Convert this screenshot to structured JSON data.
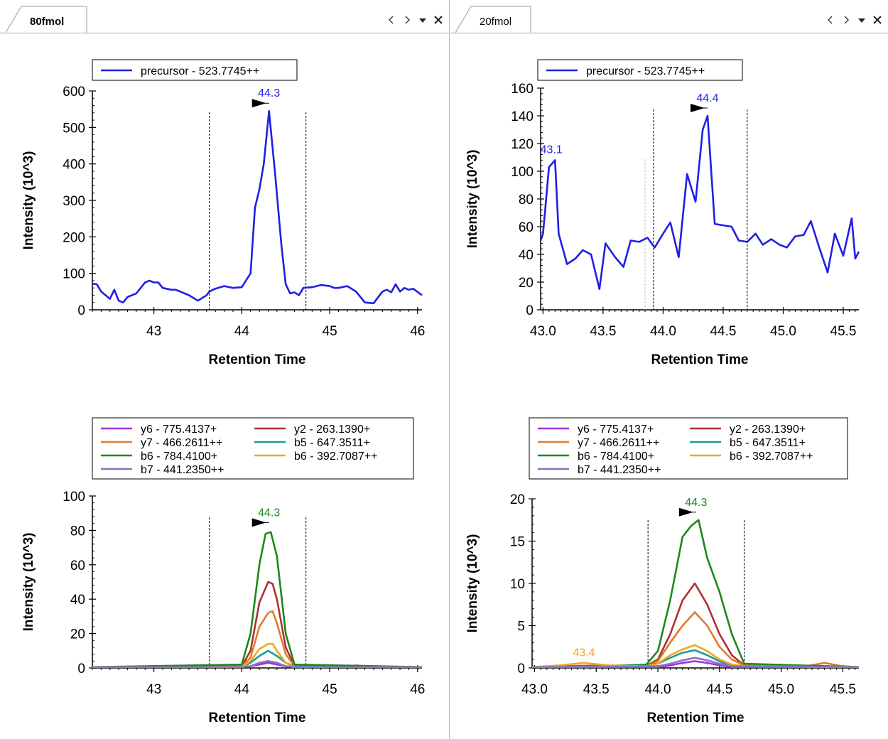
{
  "panes": [
    {
      "tab_label": "80fmol",
      "tab_active": true,
      "charts": [
        {
          "type": "line",
          "ylabel": "Intensity (10^3)",
          "xlabel": "Retention Time",
          "xlim": [
            42.3,
            46.05
          ],
          "ylim": [
            0,
            600
          ],
          "xticks": [
            43,
            44,
            45,
            46
          ],
          "xtick_labels": [
            "43",
            "44",
            "45",
            "46"
          ],
          "yticks": [
            0,
            100,
            200,
            300,
            400,
            500,
            600
          ],
          "ytick_labels": [
            "0",
            "100",
            "200",
            "300",
            "400",
            "500",
            "600"
          ],
          "boundaries": [
            43.63,
            44.73
          ],
          "peak_marker": {
            "x": 44.31,
            "y": 545,
            "label": "44.3",
            "color": "#2222ee"
          },
          "legend_columns": 1,
          "series": [
            {
              "name": "precursor - 523.7745++",
              "color": "#1f1fe5",
              "x": [
                42.3,
                42.35,
                42.4,
                42.5,
                42.55,
                42.6,
                42.65,
                42.7,
                42.8,
                42.9,
                42.95,
                43.0,
                43.05,
                43.1,
                43.2,
                43.25,
                43.3,
                43.4,
                43.5,
                43.6,
                43.63,
                43.7,
                43.8,
                43.9,
                44.0,
                44.1,
                44.15,
                44.2,
                44.25,
                44.31,
                44.38,
                44.45,
                44.5,
                44.55,
                44.6,
                44.65,
                44.7,
                44.8,
                44.9,
                45.0,
                45.05,
                45.1,
                45.2,
                45.3,
                45.4,
                45.5,
                45.6,
                45.65,
                45.7,
                45.75,
                45.8,
                45.85,
                45.9,
                45.95,
                46.05
              ],
              "y": [
                72,
                70,
                50,
                30,
                55,
                25,
                20,
                35,
                45,
                75,
                80,
                75,
                75,
                60,
                55,
                55,
                50,
                40,
                25,
                40,
                50,
                58,
                65,
                60,
                62,
                100,
                280,
                330,
                400,
                545,
                370,
                180,
                70,
                45,
                48,
                40,
                60,
                62,
                68,
                65,
                60,
                60,
                65,
                50,
                20,
                18,
                50,
                55,
                48,
                70,
                50,
                60,
                55,
                58,
                40
              ]
            }
          ]
        },
        {
          "type": "line",
          "ylabel": "Intensity (10^3)",
          "xlabel": "Retention Time",
          "xlim": [
            42.3,
            46.05
          ],
          "ylim": [
            0,
            100
          ],
          "xticks": [
            43,
            44,
            45,
            46
          ],
          "xtick_labels": [
            "43",
            "44",
            "45",
            "46"
          ],
          "yticks": [
            0,
            20,
            40,
            60,
            80,
            100
          ],
          "ytick_labels": [
            "0",
            "20",
            "40",
            "60",
            "80",
            "100"
          ],
          "boundaries": [
            43.63,
            44.73
          ],
          "peak_marker": {
            "x": 44.31,
            "y": 80,
            "label": "44.3",
            "color": "#1a8a1a"
          },
          "legend_columns": 2,
          "series": [
            {
              "name": "y6 - 775.4137+",
              "color": "#a030e0",
              "x": [
                42.3,
                44.0,
                44.1,
                44.2,
                44.3,
                44.4,
                44.5,
                44.6,
                46.05
              ],
              "y": [
                0.5,
                0.5,
                1,
                2,
                3,
                2,
                1,
                0.5,
                0.5
              ]
            },
            {
              "name": "y2 - 263.1390+",
              "color": "#b03030",
              "x": [
                42.3,
                44.0,
                44.1,
                44.2,
                44.3,
                44.35,
                44.4,
                44.5,
                44.6,
                46.05
              ],
              "y": [
                0.5,
                1,
                10,
                38,
                50,
                49,
                40,
                12,
                1,
                0.5
              ]
            },
            {
              "name": "y7 - 466.2611++",
              "color": "#e07a2e",
              "x": [
                42.3,
                44.0,
                44.1,
                44.2,
                44.3,
                44.35,
                44.4,
                44.5,
                44.6,
                45.2,
                45.3,
                45.4,
                46.05
              ],
              "y": [
                0.5,
                1,
                6,
                24,
                32,
                33,
                26,
                8,
                1,
                1,
                1.5,
                1,
                0.5
              ]
            },
            {
              "name": "b5 - 647.3511+",
              "color": "#1a9a9a",
              "x": [
                42.3,
                44.0,
                44.1,
                44.2,
                44.3,
                44.4,
                44.5,
                44.6,
                46.05
              ],
              "y": [
                0.5,
                0.5,
                3,
                7,
                10,
                7,
                3,
                1,
                0.5
              ]
            },
            {
              "name": "b6 - 784.4100+",
              "color": "#1a8a1a",
              "x": [
                42.3,
                44.0,
                44.1,
                44.2,
                44.27,
                44.33,
                44.4,
                44.5,
                44.6,
                46.05
              ],
              "y": [
                0.5,
                2,
                20,
                60,
                78,
                79,
                65,
                20,
                2,
                0.5
              ]
            },
            {
              "name": "b6 - 392.7087++",
              "color": "#f2a71b",
              "x": [
                42.3,
                44.0,
                44.1,
                44.2,
                44.3,
                44.35,
                44.4,
                44.5,
                44.6,
                46.05
              ],
              "y": [
                0.5,
                0.5,
                4,
                11,
                14,
                14,
                10,
                3,
                0.5,
                0.5
              ]
            },
            {
              "name": "b7 - 441.2350++",
              "color": "#8a73c0",
              "x": [
                42.3,
                44.0,
                44.1,
                44.2,
                44.3,
                44.4,
                44.5,
                44.6,
                46.05
              ],
              "y": [
                0.5,
                0.5,
                1,
                3,
                4,
                3,
                1,
                0.5,
                0.5
              ]
            }
          ]
        }
      ]
    },
    {
      "tab_label": "20fmol",
      "tab_active": false,
      "charts": [
        {
          "type": "line",
          "ylabel": "Intensity (10^3)",
          "xlabel": "Retention Time",
          "xlim": [
            42.98,
            45.63
          ],
          "ylim": [
            0,
            160
          ],
          "xticks": [
            43.0,
            43.5,
            44.0,
            44.5,
            45.0,
            45.5
          ],
          "xtick_labels": [
            "43.0",
            "43.5",
            "44.0",
            "44.5",
            "45.0",
            "45.5"
          ],
          "yticks": [
            0,
            20,
            40,
            60,
            80,
            100,
            120,
            140,
            160
          ],
          "ytick_labels": [
            "0",
            "20",
            "40",
            "60",
            "80",
            "100",
            "120",
            "140",
            "160"
          ],
          "boundaries": [
            43.92,
            44.7
          ],
          "extra_boundary": 43.85,
          "peak_marker": {
            "x": 44.37,
            "y": 140,
            "label": "44.4",
            "color": "#2222ee"
          },
          "extra_labels": [
            {
              "x": 43.07,
              "y": 110,
              "text": "43.1",
              "color": "#2222ee"
            }
          ],
          "legend_columns": 1,
          "series": [
            {
              "name": "precursor - 523.7745++",
              "color": "#1f1fe5",
              "x": [
                42.98,
                43.0,
                43.05,
                43.1,
                43.13,
                43.2,
                43.27,
                43.33,
                43.4,
                43.47,
                43.52,
                43.6,
                43.67,
                43.73,
                43.8,
                43.87,
                43.93,
                44.0,
                44.06,
                44.13,
                44.2,
                44.27,
                44.33,
                44.37,
                44.43,
                44.5,
                44.57,
                44.63,
                44.7,
                44.77,
                44.83,
                44.9,
                44.97,
                45.03,
                45.1,
                45.17,
                45.23,
                45.3,
                45.37,
                45.43,
                45.5,
                45.57,
                45.6,
                45.63
              ],
              "y": [
                50,
                55,
                103,
                108,
                55,
                33,
                37,
                43,
                40,
                15,
                48,
                38,
                31,
                50,
                49,
                52,
                45,
                55,
                63,
                38,
                98,
                78,
                130,
                140,
                62,
                61,
                60,
                50,
                49,
                55,
                47,
                51,
                47,
                45,
                53,
                54,
                64,
                45,
                27,
                55,
                39,
                66,
                37,
                42
              ]
            }
          ]
        },
        {
          "type": "line",
          "ylabel": "Intensity (10^3)",
          "xlabel": "Retention Time",
          "xlim": [
            42.98,
            45.63
          ],
          "ylim": [
            0,
            20
          ],
          "xticks": [
            43.0,
            43.5,
            44.0,
            44.5,
            45.0,
            45.5
          ],
          "xtick_labels": [
            "43.0",
            "43.5",
            "44.0",
            "44.5",
            "45.0",
            "45.5"
          ],
          "yticks": [
            0,
            5,
            10,
            15,
            20
          ],
          "ytick_labels": [
            "0",
            "5",
            "10",
            "15",
            "20"
          ],
          "boundaries": [
            43.92,
            44.7
          ],
          "peak_marker": {
            "x": 44.31,
            "y": 17.5,
            "label": "44.3",
            "color": "#1a8a1a"
          },
          "extra_labels": [
            {
              "x": 43.4,
              "y": 0.9,
              "text": "43.4",
              "color": "#f2a71b"
            }
          ],
          "legend_columns": 2,
          "series": [
            {
              "name": "y6 - 775.4137+",
              "color": "#a030e0",
              "x": [
                42.98,
                44.0,
                44.1,
                44.2,
                44.3,
                44.4,
                44.5,
                44.6,
                45.63
              ],
              "y": [
                0.1,
                0.1,
                0.3,
                0.6,
                0.8,
                0.6,
                0.3,
                0.1,
                0.1
              ]
            },
            {
              "name": "y2 - 263.1390+",
              "color": "#b03030",
              "x": [
                42.98,
                43.9,
                44.0,
                44.1,
                44.2,
                44.3,
                44.4,
                44.5,
                44.6,
                44.7,
                45.63
              ],
              "y": [
                0.1,
                0.2,
                1,
                4,
                8,
                10,
                7.5,
                4,
                1.5,
                0.3,
                0.1
              ]
            },
            {
              "name": "y7 - 466.2611++",
              "color": "#e07a2e",
              "x": [
                42.98,
                43.5,
                43.9,
                44.0,
                44.1,
                44.2,
                44.3,
                44.4,
                44.5,
                44.6,
                44.7,
                45.2,
                45.35,
                45.5,
                45.63
              ],
              "y": [
                0.1,
                0.3,
                0.2,
                0.8,
                3,
                5,
                6.6,
                5,
                2.5,
                1,
                0.3,
                0.2,
                0.6,
                0.2,
                0.1
              ]
            },
            {
              "name": "b5 - 647.3511+",
              "color": "#1a9a9a",
              "x": [
                42.98,
                43.7,
                43.9,
                44.0,
                44.1,
                44.2,
                44.3,
                44.4,
                44.5,
                44.6,
                45.63
              ],
              "y": [
                0.1,
                0.3,
                0.4,
                0.5,
                1.2,
                1.8,
                2.1,
                1.5,
                0.8,
                0.2,
                0.1
              ]
            },
            {
              "name": "b6 - 784.4100+",
              "color": "#1a8a1a",
              "x": [
                42.98,
                43.9,
                44.0,
                44.1,
                44.2,
                44.27,
                44.33,
                44.4,
                44.5,
                44.6,
                44.7,
                45.63
              ],
              "y": [
                0.1,
                0.3,
                2,
                8,
                15.5,
                16.8,
                17.5,
                13,
                9,
                4,
                0.5,
                0.1
              ]
            },
            {
              "name": "b6 - 392.7087++",
              "color": "#f2a71b",
              "x": [
                42.98,
                43.2,
                43.4,
                43.6,
                43.9,
                44.0,
                44.1,
                44.2,
                44.3,
                44.4,
                44.5,
                44.6,
                44.7,
                45.63
              ],
              "y": [
                0.1,
                0.3,
                0.6,
                0.3,
                0.2,
                0.5,
                1.5,
                2.2,
                2.7,
                2,
                1,
                0.4,
                0.2,
                0.1
              ]
            },
            {
              "name": "b7 - 441.2350++",
              "color": "#8a73c0",
              "x": [
                42.98,
                44.0,
                44.1,
                44.2,
                44.3,
                44.4,
                44.5,
                44.6,
                45.63
              ],
              "y": [
                0.1,
                0.2,
                0.5,
                0.9,
                1.2,
                0.9,
                0.5,
                0.2,
                0.1
              ]
            }
          ]
        }
      ]
    }
  ]
}
